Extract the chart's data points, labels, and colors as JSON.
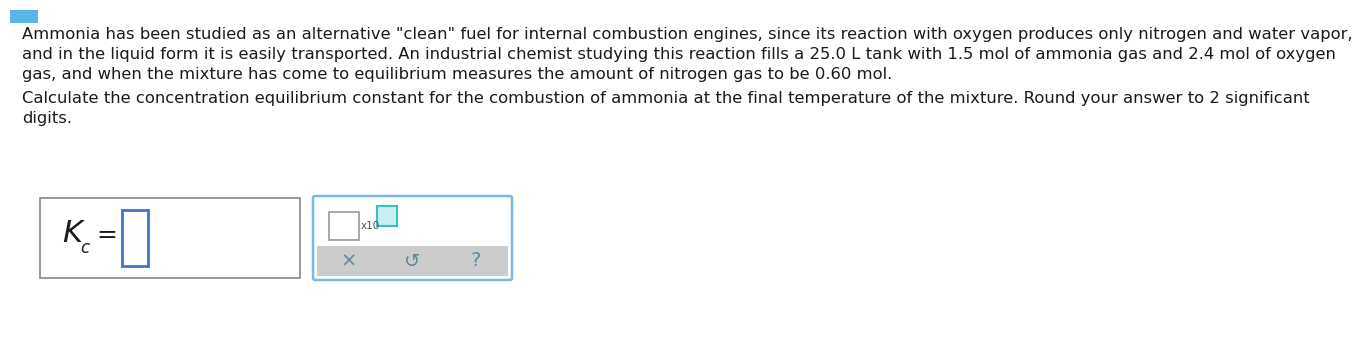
{
  "bg_color": "#ffffff",
  "text_color": "#1a1a1a",
  "para1_lines": [
    "Ammonia has been studied as an alternative \"clean\" fuel for internal combustion engines, since its reaction with oxygen produces only nitrogen and water vapor,",
    "and in the liquid form it is easily transported. An industrial chemist studying this reaction fills a 25.0 L tank with 1.5 mol of ammonia gas and 2.4 mol of oxygen",
    "gas, and when the mixture has come to equilibrium measures the amount of nitrogen gas to be 0.60 mol."
  ],
  "para2_lines": [
    "Calculate the concentration equilibrium constant for the combustion of ammonia at the final temperature of the mixture. Round your answer to 2 significant",
    "digits."
  ],
  "font_size_body": 11.8,
  "tab_color": "#5ab4e5",
  "box1_edge": "#888888",
  "box2_edge": "#7ab8e8",
  "blue_input": "#4472c4",
  "teal_exp": "#3bbfbf",
  "gray_btn": "#cccccc",
  "btn_text": "#5a8a9f",
  "x10_color": "#555555"
}
